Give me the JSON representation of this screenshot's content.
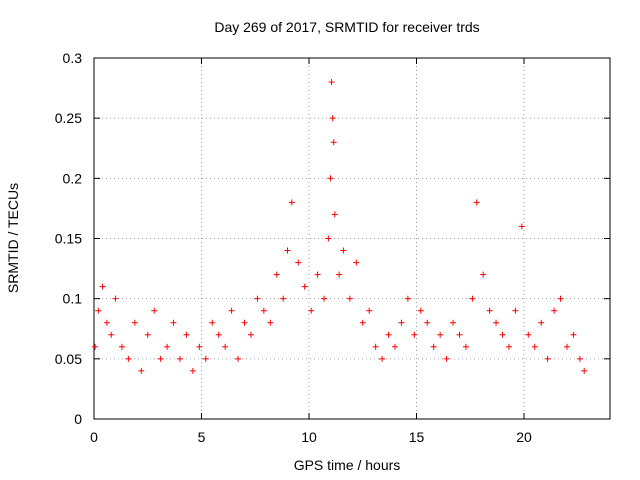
{
  "chart_data": {
    "type": "scatter",
    "title": "Day 269 of 2017, SRMTID for receiver trds",
    "xlabel": "GPS time / hours",
    "ylabel": "SRMTID / TECUs",
    "xlim": [
      0,
      24
    ],
    "ylim": [
      0,
      0.3
    ],
    "xticks": [
      0,
      5,
      10,
      15,
      20
    ],
    "yticks": [
      0,
      0.05,
      0.1,
      0.15,
      0.2,
      0.25,
      0.3
    ],
    "xtick_labels": [
      "0",
      "5",
      "10",
      "15",
      "20"
    ],
    "ytick_labels": [
      "0",
      "0.05",
      "0.1",
      "0.15",
      "0.2",
      "0.25",
      "0.3"
    ],
    "grid": true,
    "marker": "+",
    "series": [
      {
        "name": "SRMTID",
        "color": "#ff0000",
        "x": [
          0.05,
          0.2,
          0.4,
          0.6,
          0.8,
          1.0,
          1.3,
          1.6,
          1.9,
          2.2,
          2.5,
          2.8,
          3.1,
          3.4,
          3.7,
          4.0,
          4.3,
          4.6,
          4.9,
          5.2,
          5.5,
          5.8,
          6.1,
          6.4,
          6.7,
          7.0,
          7.3,
          7.6,
          7.9,
          8.2,
          8.5,
          8.8,
          9.0,
          9.2,
          9.5,
          9.8,
          10.1,
          10.4,
          10.7,
          10.9,
          11.0,
          11.05,
          11.1,
          11.15,
          11.2,
          11.4,
          11.6,
          11.9,
          12.2,
          12.5,
          12.8,
          13.1,
          13.4,
          13.7,
          14.0,
          14.3,
          14.6,
          14.9,
          15.2,
          15.5,
          15.8,
          16.1,
          16.4,
          16.7,
          17.0,
          17.3,
          17.6,
          17.8,
          18.1,
          18.4,
          18.7,
          19.0,
          19.3,
          19.6,
          19.9,
          20.2,
          20.5,
          20.8,
          21.1,
          21.4,
          21.7,
          22.0,
          22.3,
          22.6,
          22.8
        ],
        "y": [
          0.06,
          0.09,
          0.11,
          0.08,
          0.07,
          0.1,
          0.06,
          0.05,
          0.08,
          0.04,
          0.07,
          0.09,
          0.05,
          0.06,
          0.08,
          0.05,
          0.07,
          0.04,
          0.06,
          0.05,
          0.08,
          0.07,
          0.06,
          0.09,
          0.05,
          0.08,
          0.07,
          0.1,
          0.09,
          0.08,
          0.12,
          0.1,
          0.14,
          0.18,
          0.13,
          0.11,
          0.09,
          0.12,
          0.1,
          0.15,
          0.2,
          0.28,
          0.25,
          0.23,
          0.17,
          0.12,
          0.14,
          0.1,
          0.13,
          0.08,
          0.09,
          0.06,
          0.05,
          0.07,
          0.06,
          0.08,
          0.1,
          0.07,
          0.09,
          0.08,
          0.06,
          0.07,
          0.05,
          0.08,
          0.07,
          0.06,
          0.1,
          0.18,
          0.12,
          0.09,
          0.08,
          0.07,
          0.06,
          0.09,
          0.16,
          0.07,
          0.06,
          0.08,
          0.05,
          0.09,
          0.1,
          0.06,
          0.07,
          0.05,
          0.04
        ]
      }
    ]
  }
}
